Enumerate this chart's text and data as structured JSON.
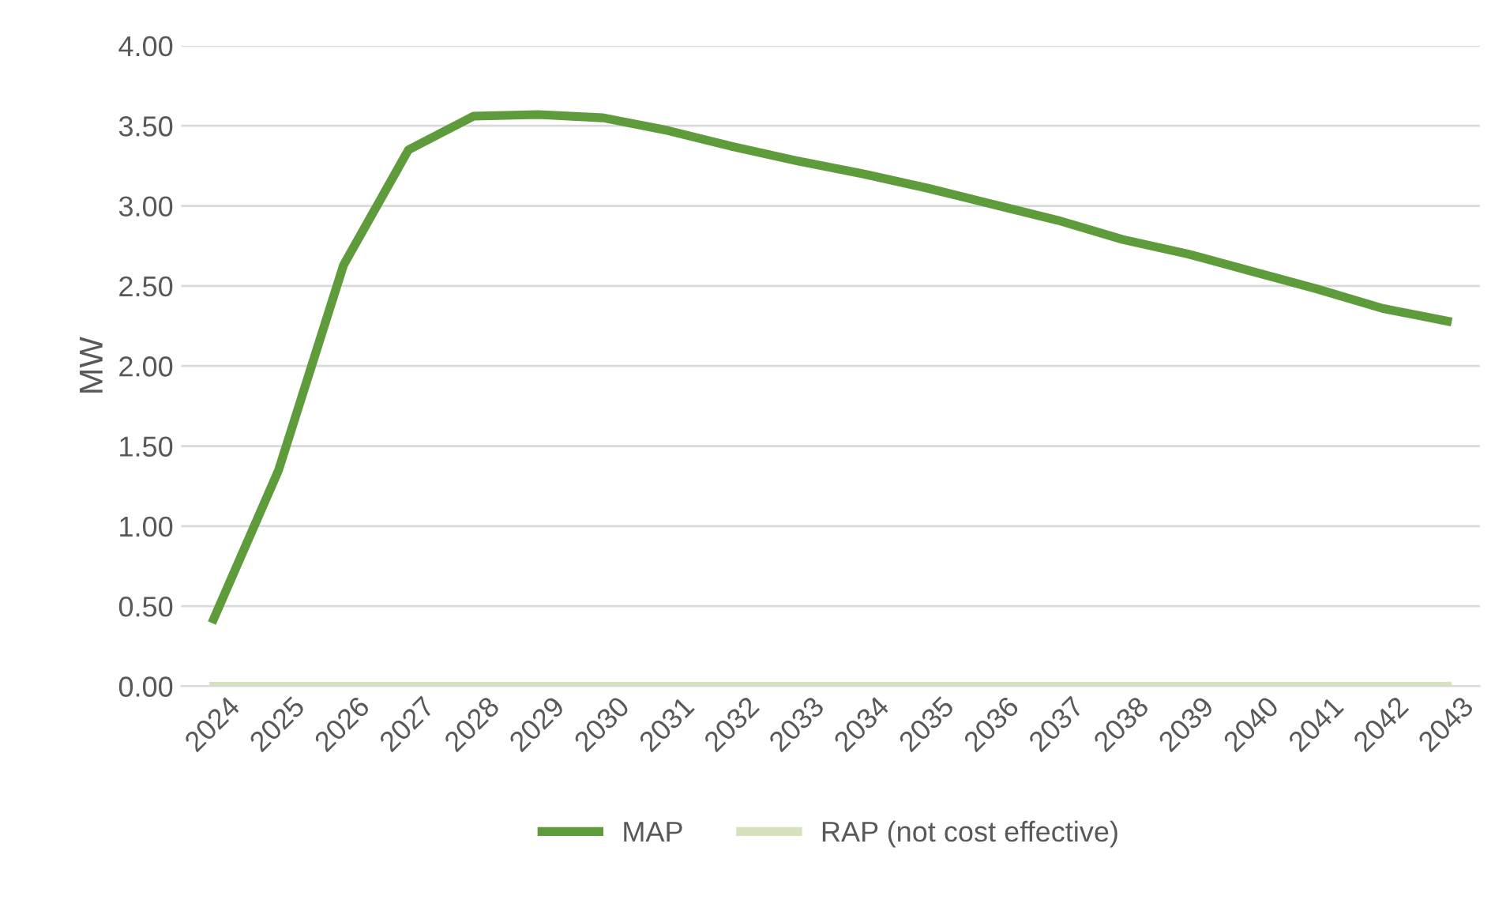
{
  "chart_data": {
    "type": "line",
    "ylabel": "MW",
    "categories": [
      "2024",
      "2025",
      "2026",
      "2027",
      "2028",
      "2029",
      "2030",
      "2031",
      "2032",
      "2033",
      "2034",
      "2035",
      "2036",
      "2037",
      "2038",
      "2039",
      "2040",
      "2041",
      "2042",
      "2043"
    ],
    "series": [
      {
        "name": "MAP",
        "color": "#5e9b3a",
        "values": [
          0.42,
          1.35,
          2.63,
          3.35,
          3.56,
          3.57,
          3.55,
          3.47,
          3.37,
          3.28,
          3.2,
          3.11,
          3.01,
          2.91,
          2.79,
          2.7,
          2.59,
          2.48,
          2.36,
          2.28
        ]
      },
      {
        "name": "RAP (not cost effective)",
        "color": "#d5e2bb",
        "values": [
          0,
          0,
          0,
          0,
          0,
          0,
          0,
          0,
          0,
          0,
          0,
          0,
          0,
          0,
          0,
          0,
          0,
          0,
          0,
          0
        ]
      }
    ],
    "ylim": [
      0,
      4
    ],
    "yticks": [
      {
        "value": 0,
        "label": "0.00"
      },
      {
        "value": 0.5,
        "label": "0.50"
      },
      {
        "value": 1,
        "label": "1.00"
      },
      {
        "value": 1.5,
        "label": "1.50"
      },
      {
        "value": 2,
        "label": "2.00"
      },
      {
        "value": 2.5,
        "label": "2.50"
      },
      {
        "value": 3,
        "label": "3.00"
      },
      {
        "value": 3.5,
        "label": "3.50"
      },
      {
        "value": 4,
        "label": "4.00"
      }
    ],
    "grid": "y",
    "legend": "bottom",
    "marker": "none",
    "line_style": "solid"
  }
}
